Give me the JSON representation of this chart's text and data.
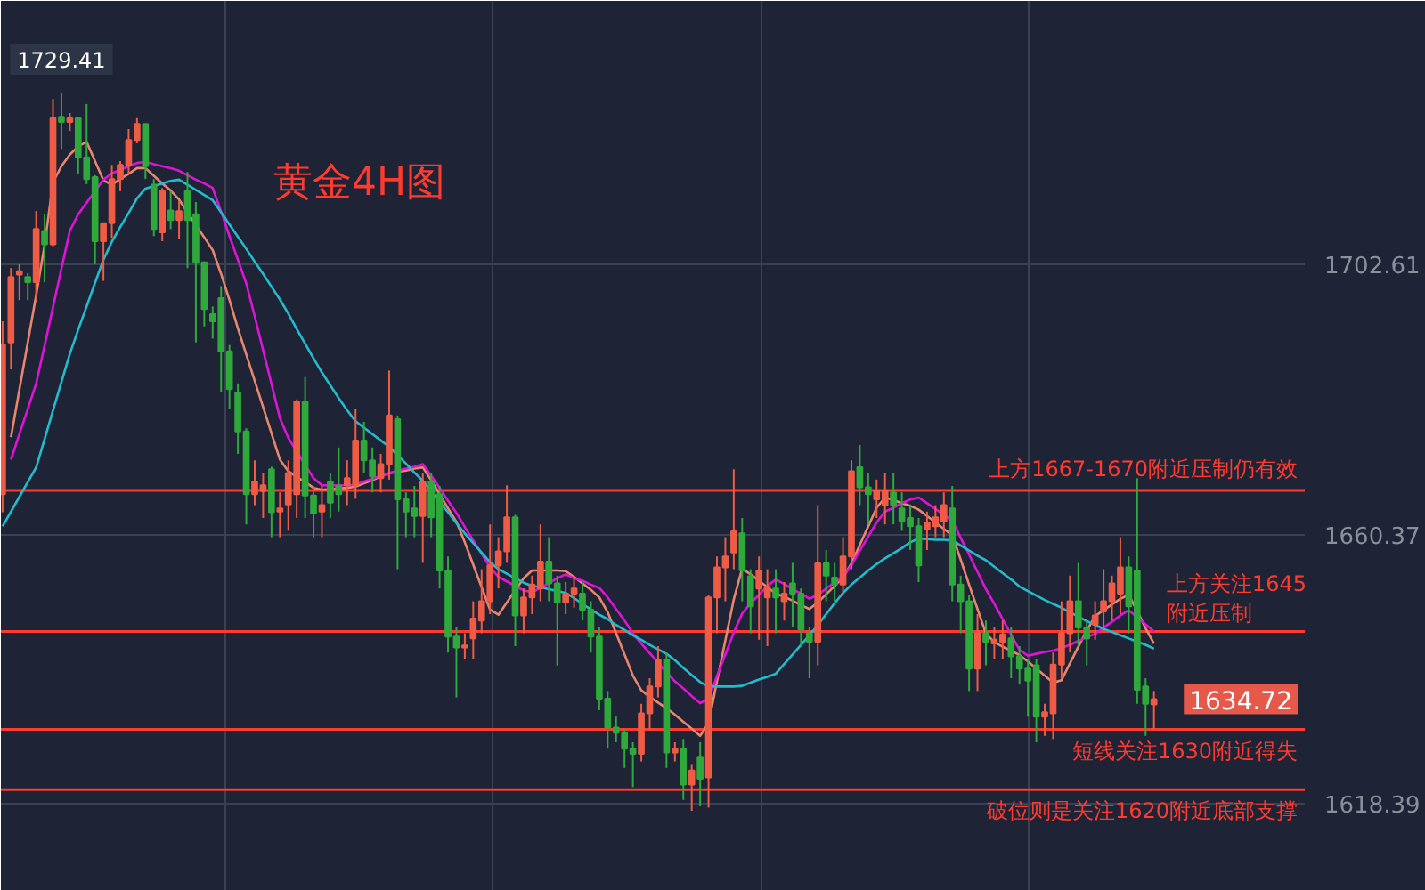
{
  "chart_data": {
    "type": "candlestick",
    "title": "黄金4H图",
    "categories": [
      null,
      null,
      null,
      null,
      null,
      null,
      null,
      null,
      null,
      null,
      null,
      null,
      null,
      null,
      null,
      null,
      null,
      null,
      null,
      null,
      null,
      null,
      null,
      null,
      null,
      null,
      null,
      null,
      null,
      null,
      null,
      null,
      null,
      null,
      null,
      null,
      null,
      null,
      null,
      null,
      null,
      null,
      null,
      null,
      null,
      null,
      null,
      null,
      null,
      null,
      null,
      null,
      null,
      null,
      null,
      null,
      null,
      null,
      null,
      null,
      null,
      null,
      null,
      null,
      null,
      null,
      null,
      null,
      null,
      null,
      null,
      null,
      null,
      null,
      null,
      null,
      null,
      null,
      null,
      null,
      null,
      null,
      null,
      null,
      null,
      null,
      null,
      null,
      null,
      null,
      null,
      null,
      null,
      null,
      null,
      null,
      null,
      null,
      null,
      null,
      null,
      null,
      null,
      null,
      null,
      null,
      null,
      null,
      null,
      null,
      null,
      null,
      null,
      null,
      null,
      null,
      null,
      null,
      null,
      null,
      null,
      null,
      null,
      null,
      null,
      null,
      null,
      null,
      null,
      null,
      null,
      null,
      null,
      null,
      null,
      null,
      null,
      null
    ],
    "ohlc": [
      [
        1666.7,
        1693.7,
        1663.9,
        1690.1
      ],
      [
        1690.4,
        1702,
        1686.2,
        1700.6
      ],
      [
        1701,
        1702.6,
        1697,
        1701.5
      ],
      [
        1700.6,
        1701.2,
        1697,
        1699.8
      ],
      [
        1699.8,
        1710.9,
        1697,
        1708.1
      ],
      [
        1707.8,
        1710.4,
        1699.8,
        1705.7
      ],
      [
        1705.7,
        1728.4,
        1705.4,
        1725.4
      ],
      [
        1725.6,
        1729.41,
        1720.6,
        1724.8
      ],
      [
        1724.8,
        1726.2,
        1723.4,
        1725.4
      ],
      [
        1725.4,
        1725.6,
        1716.7,
        1719.3
      ],
      [
        1719.3,
        1727.6,
        1715.1,
        1715.9
      ],
      [
        1716.2,
        1716.5,
        1702.6,
        1706.2
      ],
      [
        1706.2,
        1709,
        1700,
        1709
      ],
      [
        1709,
        1718.1,
        1706.7,
        1715.9
      ],
      [
        1715.9,
        1718.7,
        1714,
        1718.1
      ],
      [
        1718.1,
        1723.7,
        1716.7,
        1722
      ],
      [
        1722,
        1725.4,
        1721.5,
        1724.5
      ],
      [
        1724.5,
        1724.5,
        1715.9,
        1717.9
      ],
      [
        1715,
        1715.9,
        1707,
        1708.1
      ],
      [
        1707.6,
        1714.5,
        1706.2,
        1714
      ],
      [
        1711,
        1714,
        1708.1,
        1709.5
      ],
      [
        1709.5,
        1712.5,
        1706.5,
        1710.9
      ],
      [
        1714,
        1717,
        1702,
        1709.5
      ],
      [
        1710.4,
        1712.3,
        1690.4,
        1702.9
      ],
      [
        1702.9,
        1702.9,
        1692.9,
        1695.6
      ],
      [
        1694.8,
        1696,
        1691,
        1693.7
      ],
      [
        1697.3,
        1699.2,
        1682.6,
        1689
      ],
      [
        1689,
        1690,
        1680,
        1683.1
      ],
      [
        1682.6,
        1684,
        1673,
        1676.5
      ],
      [
        1676.5,
        1677,
        1662,
        1666.7
      ],
      [
        1666.7,
        1672,
        1665,
        1668.7
      ],
      [
        1667.2,
        1670,
        1663,
        1668.1
      ],
      [
        1670.6,
        1671,
        1660,
        1663.9
      ],
      [
        1664,
        1667,
        1660,
        1664.5
      ],
      [
        1665.1,
        1672,
        1661,
        1670
      ],
      [
        1666.7,
        1681.5,
        1663,
        1681.2
      ],
      [
        1681.2,
        1685,
        1663,
        1666.5
      ],
      [
        1666.5,
        1668,
        1660,
        1663.7
      ],
      [
        1664,
        1668,
        1660,
        1665
      ],
      [
        1668.7,
        1670,
        1663,
        1665.4
      ],
      [
        1668,
        1674,
        1664,
        1666.7
      ],
      [
        1668.1,
        1672,
        1665,
        1669.2
      ],
      [
        1668.1,
        1680,
        1666,
        1675.1
      ],
      [
        1675.1,
        1678,
        1670,
        1672
      ],
      [
        1672,
        1674,
        1667,
        1669.5
      ],
      [
        1669.2,
        1673,
        1667,
        1671.4
      ],
      [
        1671.4,
        1686,
        1669,
        1679
      ],
      [
        1678.4,
        1679,
        1655,
        1665.9
      ],
      [
        1665.9,
        1667,
        1660,
        1664
      ],
      [
        1664.5,
        1668,
        1660,
        1663.3
      ],
      [
        1663.3,
        1670,
        1656,
        1668.7
      ],
      [
        1668.7,
        1670,
        1660,
        1663.1
      ],
      [
        1666.7,
        1668,
        1652,
        1654.8
      ],
      [
        1654.8,
        1657,
        1642,
        1644.5
      ],
      [
        1644.5,
        1646,
        1635,
        1642.8
      ],
      [
        1642.8,
        1645,
        1641,
        1643.1
      ],
      [
        1644.2,
        1650,
        1641,
        1647.3
      ],
      [
        1647,
        1655,
        1645,
        1650
      ],
      [
        1650,
        1662,
        1648,
        1655.6
      ],
      [
        1655.6,
        1660,
        1652,
        1657.8
      ],
      [
        1657.8,
        1668.1,
        1656,
        1663.1
      ],
      [
        1663.1,
        1663.5,
        1643,
        1647.8
      ],
      [
        1647.8,
        1652,
        1645,
        1650.6
      ],
      [
        1650.6,
        1654,
        1648,
        1652.6
      ],
      [
        1652,
        1662,
        1650,
        1656.2
      ],
      [
        1656.2,
        1660,
        1650,
        1652.8
      ],
      [
        1652.8,
        1654,
        1640,
        1649.8
      ],
      [
        1649.8,
        1653,
        1648,
        1651.2
      ],
      [
        1651.2,
        1654,
        1649,
        1652
      ],
      [
        1651.2,
        1653,
        1647,
        1648.7
      ],
      [
        1648.7,
        1650,
        1642,
        1644.5
      ],
      [
        1644.5,
        1646,
        1633,
        1634.8
      ],
      [
        1634.8,
        1636,
        1627,
        1630.3
      ],
      [
        1630.3,
        1632,
        1628,
        1629.5
      ],
      [
        1629.5,
        1630,
        1624,
        1627
      ],
      [
        1627,
        1628,
        1621,
        1626.2
      ],
      [
        1626.2,
        1634,
        1625,
        1632.5
      ],
      [
        1632.5,
        1638,
        1630,
        1636.7
      ],
      [
        1636.7,
        1643,
        1635,
        1640.9
      ],
      [
        1640.9,
        1642,
        1624,
        1626.4
      ],
      [
        1626.4,
        1628,
        1625,
        1627
      ],
      [
        1627,
        1628.5,
        1619,
        1621.4
      ],
      [
        1621.4,
        1624.6,
        1617.3,
        1623.6
      ],
      [
        1625.6,
        1628,
        1618,
        1622.3
      ],
      [
        1622.5,
        1651,
        1617.8,
        1650.6
      ],
      [
        1650.6,
        1657,
        1645,
        1655.3
      ],
      [
        1655.3,
        1660,
        1650,
        1657
      ],
      [
        1657.6,
        1670.6,
        1655,
        1660.9
      ],
      [
        1660.6,
        1663,
        1650,
        1654.8
      ],
      [
        1653.9,
        1655,
        1645,
        1649.2
      ],
      [
        1652,
        1657,
        1644,
        1654.8
      ],
      [
        1650.6,
        1655,
        1643,
        1652.3
      ],
      [
        1652,
        1655,
        1645,
        1650.6
      ],
      [
        1650,
        1653,
        1647,
        1651.2
      ],
      [
        1652.8,
        1656,
        1646,
        1651.2
      ],
      [
        1651.2,
        1652,
        1643,
        1645.6
      ],
      [
        1645,
        1646,
        1638,
        1643.7
      ],
      [
        1643.7,
        1665,
        1640,
        1655.9
      ],
      [
        1655.9,
        1658,
        1650,
        1654
      ],
      [
        1653.7,
        1656,
        1650,
        1652.6
      ],
      [
        1652.6,
        1660,
        1651,
        1657
      ],
      [
        1657,
        1672,
        1655,
        1670.3
      ],
      [
        1670.9,
        1674.4,
        1665,
        1667.8
      ],
      [
        1667.8,
        1670,
        1662,
        1666.7
      ],
      [
        1665.9,
        1669,
        1663,
        1667.3
      ],
      [
        1665,
        1670,
        1662,
        1667.3
      ],
      [
        1667,
        1670,
        1662,
        1665
      ],
      [
        1664.5,
        1667,
        1661,
        1662.5
      ],
      [
        1663,
        1665,
        1658,
        1661.7
      ],
      [
        1661.7,
        1663,
        1653,
        1655.6
      ],
      [
        1661.2,
        1664,
        1658,
        1662.3
      ],
      [
        1661.7,
        1665,
        1660,
        1663.1
      ],
      [
        1662.5,
        1667,
        1660,
        1665
      ],
      [
        1664.5,
        1668,
        1650,
        1652.6
      ],
      [
        1652.6,
        1654,
        1645,
        1650
      ],
      [
        1650,
        1651,
        1636,
        1639.5
      ],
      [
        1639.5,
        1648,
        1636,
        1645
      ],
      [
        1645,
        1647,
        1640,
        1643.7
      ],
      [
        1643.4,
        1646,
        1641,
        1644
      ],
      [
        1643.7,
        1647,
        1641,
        1644.8
      ],
      [
        1644.2,
        1646,
        1638,
        1641.4
      ],
      [
        1641.4,
        1643,
        1637,
        1639.5
      ],
      [
        1639.5,
        1641,
        1632,
        1637.6
      ],
      [
        1640,
        1641,
        1628,
        1632
      ],
      [
        1632,
        1634,
        1629,
        1632.7
      ],
      [
        1632.5,
        1642,
        1628.5,
        1640.1
      ],
      [
        1640.1,
        1650,
        1638,
        1645
      ],
      [
        1645,
        1654,
        1642,
        1650
      ],
      [
        1650,
        1656,
        1643,
        1645.9
      ],
      [
        1645.9,
        1647,
        1640,
        1644.2
      ],
      [
        1646.4,
        1650,
        1644,
        1647.8
      ],
      [
        1648.4,
        1655,
        1646,
        1650
      ],
      [
        1650,
        1654,
        1647,
        1652.8
      ],
      [
        1651.2,
        1660,
        1648,
        1655.3
      ],
      [
        1655.3,
        1657,
        1645,
        1649.2
      ],
      [
        1654.8,
        1669.2,
        1634,
        1636.2
      ],
      [
        1636.7,
        1638,
        1629,
        1634
      ],
      [
        1633.9,
        1636,
        1630,
        1634.72
      ]
    ],
    "colors": [
      "#ef5b45",
      "#ef5b45",
      "#ef5b45",
      "#2fa83c",
      "#ef5b45",
      "#2fa83c",
      "#ef5b45",
      "#2fa83c",
      "#ef5b45",
      "#2fa83c",
      "#2fa83c",
      "#2fa83c",
      "#ef5b45",
      "#ef5b45",
      "#ef5b45",
      "#ef5b45",
      "#ef5b45",
      "#2fa83c",
      "#2fa83c",
      "#ef5b45",
      "#2fa83c",
      "#ef5b45",
      "#2fa83c",
      "#2fa83c",
      "#2fa83c",
      "#2fa83c",
      "#2fa83c",
      "#2fa83c",
      "#2fa83c",
      "#2fa83c",
      "#ef5b45",
      "#ef5b45",
      "#2fa83c",
      "#ef5b45",
      "#ef5b45",
      "#ef5b45",
      "#2fa83c",
      "#2fa83c",
      "#ef5b45",
      "#2fa83c",
      "#2fa83c",
      "#ef5b45",
      "#ef5b45",
      "#2fa83c",
      "#2fa83c",
      "#ef5b45",
      "#ef5b45",
      "#2fa83c",
      "#2fa83c",
      "#2fa83c",
      "#ef5b45",
      "#2fa83c",
      "#2fa83c",
      "#2fa83c",
      "#2fa83c",
      "#ef5b45",
      "#ef5b45",
      "#ef5b45",
      "#ef5b45",
      "#ef5b45",
      "#ef5b45",
      "#2fa83c",
      "#ef5b45",
      "#ef5b45",
      "#ef5b45",
      "#2fa83c",
      "#2fa83c",
      "#ef5b45",
      "#ef5b45",
      "#2fa83c",
      "#2fa83c",
      "#2fa83c",
      "#2fa83c",
      "#2fa83c",
      "#2fa83c",
      "#2fa83c",
      "#ef5b45",
      "#ef5b45",
      "#ef5b45",
      "#2fa83c",
      "#ef5b45",
      "#2fa83c",
      "#ef5b45",
      "#2fa83c",
      "#ef5b45",
      "#ef5b45",
      "#ef5b45",
      "#ef5b45",
      "#2fa83c",
      "#2fa83c",
      "#ef5b45",
      "#ef5b45",
      "#2fa83c",
      "#ef5b45",
      "#2fa83c",
      "#2fa83c",
      "#2fa83c",
      "#ef5b45",
      "#2fa83c",
      "#2fa83c",
      "#ef5b45",
      "#ef5b45",
      "#2fa83c",
      "#2fa83c",
      "#ef5b45",
      "#ef5b45",
      "#2fa83c",
      "#2fa83c",
      "#2fa83c",
      "#2fa83c",
      "#ef5b45",
      "#ef5b45",
      "#ef5b45",
      "#2fa83c",
      "#2fa83c",
      "#2fa83c",
      "#ef5b45",
      "#2fa83c",
      "#ef5b45",
      "#ef5b45",
      "#2fa83c",
      "#2fa83c",
      "#2fa83c",
      "#2fa83c",
      "#ef5b45",
      "#ef5b45",
      "#ef5b45",
      "#ef5b45",
      "#2fa83c",
      "#2fa83c",
      "#ef5b45",
      "#ef5b45",
      "#ef5b45",
      "#ef5b45",
      "#2fa83c",
      "#2fa83c",
      "#2fa83c",
      "#ef5b45"
    ],
    "series": [
      {
        "type": "line",
        "color": "#e8866e",
        "values": [
          null,
          1675.6,
          1683.0,
          1690.4,
          1697.8,
          1705.6,
          1715.4,
          1717.9,
          1719.7,
          1721.0,
          1721.7,
          1718.7,
          1715.7,
          1715.0,
          1715.9,
          1716.7,
          1717.6,
          1717.6,
          1716.4,
          1715.2,
          1714.1,
          1712.7,
          1710.7,
          1708.7,
          1706.8,
          1704.8,
          1701.1,
          1697.0,
          1692.6,
          1688.5,
          1684.4,
          1680.3,
          1676.2,
          1672.1,
          1670.3,
          1669.4,
          1668.6,
          1667.7,
          1667.4,
          1667.5,
          1667.6,
          1667.7,
          1667.9,
          1668.4,
          1668.9,
          1669.5,
          1670.0,
          1670.2,
          1670.4,
          1670.7,
          1670.9,
          1668.9,
          1666.7,
          1664.5,
          1662.4,
          1659.2,
          1655.7,
          1652.2,
          1648.7,
          1647.9,
          1649.8,
          1651.7,
          1653.6,
          1654.8,
          1654.8,
          1654.8,
          1654.8,
          1654.7,
          1653.8,
          1652.8,
          1651.8,
          1650.6,
          1648.3,
          1645.0,
          1641.7,
          1638.4,
          1636.1,
          1635.1,
          1634.2,
          1633.3,
          1632.3,
          1631.2,
          1630.1,
          1629.0,
          1631.0,
          1637.5,
          1643.9,
          1650.3,
          1655.1,
          1654.2,
          1653.2,
          1652.2,
          1651.2,
          1650.7,
          1650.1,
          1649.4,
          1648.8,
          1649.8,
          1651.1,
          1652.4,
          1653.7,
          1655.9,
          1658.8,
          1661.7,
          1664.6,
          1666.2,
          1665.8,
          1665.3,
          1664.9,
          1664.3,
          1663.3,
          1662.3,
          1661.3,
          1660.3,
          1656.5,
          1652.6,
          1648.8,
          1645.0,
          1643.6,
          1642.9,
          1642.3,
          1641.6,
          1640.6,
          1639.5,
          1638.4,
          1637.3,
          1637.7,
          1640.3,
          1642.9,
          1645.4,
          1647.7,
          1648.6,
          1649.5,
          1650.4,
          1651.0,
          1648.5,
          1645.8,
          1643.4
        ]
      },
      {
        "type": "line",
        "color": "#e013d8",
        "values": [
          null,
          1672.1,
          1676.1,
          1680.0,
          1684.0,
          1689.9,
          1695.9,
          1701.9,
          1707.8,
          1710.4,
          1712.2,
          1714.0,
          1715.8,
          1716.8,
          1717.3,
          1717.9,
          1718.4,
          1718.6,
          1718.2,
          1717.9,
          1717.6,
          1717.2,
          1716.5,
          1715.8,
          1715.2,
          1714.5,
          1710.8,
          1707.0,
          1703.3,
          1699.6,
          1694.5,
          1689.2,
          1683.9,
          1678.6,
          1675.5,
          1673.4,
          1671.3,
          1669.2,
          1668.1,
          1668.1,
          1668.1,
          1668.1,
          1668.2,
          1668.7,
          1669.1,
          1669.6,
          1670.0,
          1670.4,
          1670.7,
          1671.0,
          1671.4,
          1669.6,
          1667.7,
          1665.7,
          1663.8,
          1661.6,
          1659.5,
          1657.4,
          1655.3,
          1653.8,
          1653.1,
          1652.4,
          1651.7,
          1651.4,
          1652.1,
          1652.8,
          1653.6,
          1654.2,
          1653.6,
          1653.2,
          1652.6,
          1652.1,
          1650.6,
          1648.8,
          1647.0,
          1645.0,
          1643.4,
          1641.9,
          1640.4,
          1638.9,
          1637.5,
          1636.4,
          1635.2,
          1634.1,
          1634.8,
          1638.3,
          1641.7,
          1645.1,
          1648.1,
          1649.7,
          1651.0,
          1652.4,
          1653.4,
          1652.7,
          1651.9,
          1651.2,
          1650.4,
          1651.0,
          1652.0,
          1652.9,
          1653.8,
          1655.6,
          1657.9,
          1660.1,
          1662.3,
          1664.0,
          1664.6,
          1665.3,
          1665.9,
          1666.2,
          1665.3,
          1664.4,
          1663.5,
          1662.6,
          1659.9,
          1657.3,
          1654.6,
          1651.9,
          1649.6,
          1647.2,
          1644.8,
          1642.4,
          1641.5,
          1641.8,
          1642.1,
          1642.3,
          1642.7,
          1643.2,
          1643.8,
          1644.4,
          1644.9,
          1645.9,
          1646.8,
          1647.8,
          1648.6,
          1647.5,
          1646.4,
          1645.3
        ]
      },
      {
        "type": "line",
        "color": "#22bccc",
        "values": [
          1661.7,
          1664.0,
          1666.3,
          1668.6,
          1670.9,
          1675.3,
          1679.8,
          1684.2,
          1688.6,
          1692.4,
          1696.0,
          1699.7,
          1703.3,
          1706.1,
          1708.4,
          1710.6,
          1712.9,
          1714.4,
          1714.8,
          1715.2,
          1715.6,
          1715.8,
          1715.0,
          1714.2,
          1713.4,
          1712.6,
          1710.7,
          1708.8,
          1706.9,
          1705.0,
          1703.0,
          1701.1,
          1699.1,
          1697.1,
          1694.9,
          1692.5,
          1690.2,
          1687.9,
          1685.7,
          1683.7,
          1681.7,
          1679.8,
          1678.1,
          1677.1,
          1676.1,
          1675.1,
          1674.1,
          1672.8,
          1671.5,
          1670.1,
          1668.8,
          1667.2,
          1665.5,
          1663.9,
          1662.2,
          1660.6,
          1659.1,
          1657.6,
          1656.1,
          1655.0,
          1654.3,
          1653.6,
          1652.9,
          1652.4,
          1652.2,
          1651.9,
          1651.6,
          1651.3,
          1650.5,
          1649.6,
          1648.7,
          1647.9,
          1647.2,
          1646.3,
          1645.5,
          1644.7,
          1644.0,
          1643.2,
          1642.5,
          1641.8,
          1640.8,
          1639.6,
          1638.5,
          1637.4,
          1636.7,
          1636.7,
          1636.7,
          1636.7,
          1636.8,
          1637.3,
          1637.8,
          1638.2,
          1638.7,
          1640.2,
          1641.7,
          1643.2,
          1644.7,
          1646.3,
          1648.0,
          1649.7,
          1651.3,
          1652.6,
          1653.7,
          1654.8,
          1655.8,
          1656.7,
          1657.5,
          1658.3,
          1659.2,
          1659.8,
          1659.7,
          1659.6,
          1659.6,
          1659.5,
          1658.7,
          1657.9,
          1657.1,
          1656.4,
          1655.4,
          1654.4,
          1653.4,
          1652.3,
          1651.6,
          1650.9,
          1650.2,
          1649.6,
          1649.0,
          1648.3,
          1647.6,
          1646.9,
          1646.3,
          1645.7,
          1645.2,
          1644.7,
          1644.2,
          1643.7,
          1643.2,
          1642.6
        ]
      }
    ],
    "ylim": [
      1604.8,
      1743.7
    ],
    "yticks": [
      {
        "value": 1618.39,
        "label": "1618.39"
      },
      {
        "value": 1660.37,
        "label": "1660.37"
      },
      {
        "value": 1702.61,
        "label": "1702.61"
      }
    ],
    "grid": true,
    "tick_labels": "y",
    "ref_lines": [
      {
        "axis": "y",
        "value": 1667.3,
        "label": "上方1667-1670附近压制仍有效",
        "color": "#ff3b30"
      },
      {
        "axis": "y",
        "value": 1645.3,
        "label": "上方关注1645附近压制",
        "color": "#ff3b30"
      },
      {
        "axis": "y",
        "value": 1630.0,
        "label": "短线关注1630附近得失",
        "color": "#ff3b30"
      },
      {
        "axis": "y",
        "value": 1620.6,
        "label": "破位则是关注1620附近底部支撑",
        "color": "#ff3b30"
      }
    ],
    "annotations": [
      {
        "text": "1729.41",
        "y": 1729.41
      },
      "1634.72"
    ]
  }
}
